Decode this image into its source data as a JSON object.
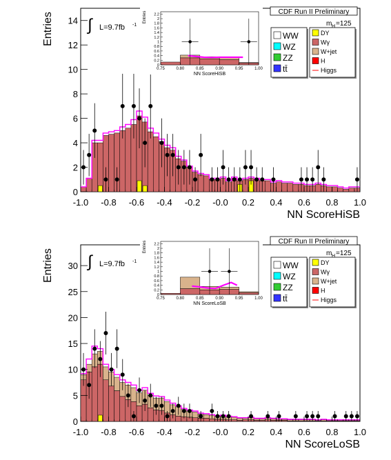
{
  "colors": {
    "WW": "#ffffff",
    "WZ": "#00ffff",
    "ZZ": "#33cc33",
    "ttbar": "#3333ff",
    "DY": "#ffff00",
    "Wgamma": "#cc6666",
    "Wjet": "#d9b38c",
    "H": "#ff0000",
    "Higgs": "#ff00ff",
    "data": "#000000"
  },
  "chart_data": [
    {
      "type": "bar",
      "stacked_histogram_with_data_points": true,
      "header": "CDF Run II Preliminary",
      "lumi_label": "L=9.7fb",
      "lumi_sup": "-1",
      "mass_label": "m",
      "mass_sub": "H",
      "mass_value": "=125",
      "xlabel": "NN ScoreHiSB",
      "ylabel": "Entries",
      "xlim": [
        -1.0,
        1.0
      ],
      "ylim": [
        0,
        15
      ],
      "xticks": [
        "-1.0",
        "-0.8",
        "-0.6",
        "-0.4",
        "-0.2",
        "-0.0",
        "0.2",
        "0.4",
        "0.6",
        "0.8",
        "1.0"
      ],
      "yticks": [
        "0",
        "2",
        "4",
        "6",
        "8",
        "10",
        "12",
        "14"
      ],
      "legend": {
        "left": [
          "WW",
          "WZ",
          "ZZ",
          "tt̄"
        ],
        "right": [
          "DY",
          "Wγ",
          "W+jet",
          "H",
          "Higgs"
        ]
      },
      "bin_width": 0.04,
      "x": [
        -0.98,
        -0.94,
        -0.9,
        -0.86,
        -0.82,
        -0.78,
        -0.74,
        -0.7,
        -0.66,
        -0.62,
        -0.58,
        -0.54,
        -0.5,
        -0.46,
        -0.42,
        -0.38,
        -0.34,
        -0.3,
        -0.26,
        -0.22,
        -0.18,
        -0.14,
        -0.1,
        -0.06,
        -0.02,
        0.02,
        0.06,
        0.1,
        0.14,
        0.18,
        0.22,
        0.26,
        0.3,
        0.34,
        0.38,
        0.42,
        0.46,
        0.5,
        0.54,
        0.58,
        0.62,
        0.66,
        0.7,
        0.74,
        0.78,
        0.82,
        0.86,
        0.9,
        0.94,
        0.98
      ],
      "stack_top": [
        0.4,
        1.1,
        4.0,
        4.0,
        4.6,
        4.7,
        4.8,
        5.0,
        5.2,
        5.5,
        6.2,
        5.7,
        4.9,
        4.5,
        4.1,
        3.6,
        3.4,
        2.7,
        2.5,
        2.0,
        1.6,
        1.4,
        1.3,
        1.0,
        1.0,
        1.1,
        0.8,
        1.1,
        0.9,
        1.0,
        1.1,
        1.0,
        0.9,
        0.9,
        0.7,
        0.8,
        0.7,
        0.7,
        0.6,
        0.6,
        0.5,
        0.5,
        0.6,
        0.5,
        0.4,
        0.4,
        0.3,
        0.2,
        0.3,
        0.3
      ],
      "dy": [
        0,
        0,
        0,
        0.5,
        0,
        0,
        0,
        0,
        0,
        0,
        0.9,
        0.5,
        0,
        0,
        0,
        0,
        0,
        0,
        0,
        0,
        0,
        0,
        0,
        0,
        0,
        0,
        0,
        0,
        0.6,
        0,
        0.9,
        0,
        0,
        0,
        0,
        0,
        0,
        0,
        0,
        0,
        0,
        0,
        0,
        0,
        0,
        0,
        0,
        0,
        0,
        0
      ],
      "higgs_top": [
        0.4,
        1.1,
        4.2,
        4.2,
        4.8,
        4.9,
        5.0,
        5.3,
        5.5,
        5.9,
        6.6,
        6.1,
        5.2,
        4.8,
        4.3,
        3.8,
        3.6,
        2.9,
        2.6,
        2.1,
        1.7,
        1.5,
        1.4,
        1.1,
        1.1,
        1.2,
        0.9,
        1.2,
        1.0,
        1.1,
        1.2,
        1.1,
        1.0,
        1.0,
        0.8,
        0.9,
        0.8,
        0.8,
        0.7,
        0.7,
        0.6,
        0.6,
        0.7,
        0.6,
        0.5,
        0.5,
        0.4,
        0.3,
        0.4,
        0.4
      ],
      "data_points": {
        "x": [
          -0.98,
          -0.94,
          -0.9,
          -0.82,
          -0.74,
          -0.7,
          -0.62,
          -0.58,
          -0.54,
          -0.5,
          -0.42,
          -0.38,
          -0.34,
          -0.3,
          -0.26,
          -0.22,
          -0.18,
          -0.14,
          -0.06,
          -0.02,
          0.02,
          0.06,
          0.1,
          0.14,
          0.18,
          0.22,
          0.26,
          0.3,
          0.38,
          0.58,
          0.62,
          0.66,
          0.7,
          0.74,
          0.98
        ],
        "y": [
          2,
          3,
          5,
          1,
          1,
          7,
          7,
          6,
          4,
          7,
          4,
          3,
          3,
          2,
          2,
          2,
          1,
          3,
          1,
          1,
          2,
          1,
          1,
          1,
          2,
          2,
          1,
          1,
          1,
          1,
          1,
          1,
          2,
          1,
          1
        ]
      },
      "inset": {
        "xlabel": "NN ScoreHiSB",
        "ylabel": "Entries",
        "xlim": [
          0.75,
          1.0
        ],
        "ylim": [
          0,
          2.3
        ],
        "xticks": [
          "0.75",
          "0.80",
          "0.85",
          "0.90",
          "0.95",
          "1.00"
        ],
        "yticks": [
          "0",
          "0.2",
          "0.4",
          "0.6",
          "0.8",
          "1",
          "1.2",
          "1.4",
          "1.6",
          "1.8",
          "2",
          "2.2"
        ],
        "bin_edges": [
          0.75,
          0.8,
          0.85,
          0.9,
          0.95,
          1.0
        ],
        "stack_top": [
          0.12,
          0.42,
          0.35,
          0.33,
          0.1
        ],
        "wgamma_top": [
          0.12,
          0.3,
          0.25,
          0.22,
          0.08
        ],
        "higgs_line": {
          "x": [
            0.82,
            0.84,
            0.86,
            0.88,
            0.9,
            0.92,
            0.94,
            0.96
          ],
          "y": [
            0.4,
            0.36,
            0.33,
            0.32,
            0.33,
            0.33,
            0.33,
            0.33
          ]
        },
        "data_points": {
          "x": [
            0.825,
            0.975
          ],
          "y": [
            1,
            1
          ]
        }
      }
    },
    {
      "type": "bar",
      "stacked_histogram_with_data_points": true,
      "header": "CDF Run II Preliminary",
      "lumi_label": "L=9.7fb",
      "lumi_sup": "-1",
      "mass_label": "m",
      "mass_sub": "H",
      "mass_value": "=125",
      "xlabel": "NN ScoreLoSB",
      "ylabel": "Entries",
      "xlim": [
        -1.0,
        1.0
      ],
      "ylim": [
        0,
        34
      ],
      "xticks": [
        "-1.0",
        "-0.8",
        "-0.6",
        "-0.4",
        "-0.2",
        "-0.0",
        "0.2",
        "0.4",
        "0.6",
        "0.8",
        "1.0"
      ],
      "yticks": [
        "0",
        "5",
        "10",
        "15",
        "20",
        "25",
        "30"
      ],
      "legend": {
        "left": [
          "WW",
          "WZ",
          "ZZ",
          "tt̄"
        ],
        "right": [
          "DY",
          "Wγ",
          "W+jet",
          "H",
          "Higgs"
        ]
      },
      "bin_width": 0.04,
      "x": [
        -0.98,
        -0.94,
        -0.9,
        -0.86,
        -0.82,
        -0.78,
        -0.74,
        -0.7,
        -0.66,
        -0.62,
        -0.58,
        -0.54,
        -0.5,
        -0.46,
        -0.42,
        -0.38,
        -0.34,
        -0.3,
        -0.26,
        -0.22,
        -0.18,
        -0.14,
        -0.1,
        -0.06,
        -0.02,
        0.02,
        0.06,
        0.1,
        0.14,
        0.18,
        0.22,
        0.26,
        0.3,
        0.34,
        0.38,
        0.42,
        0.46,
        0.5,
        0.54,
        0.58,
        0.62,
        0.66,
        0.7,
        0.74,
        0.78,
        0.82,
        0.86,
        0.9,
        0.94,
        0.98
      ],
      "stack_top": [
        9.0,
        11.0,
        13.0,
        13.5,
        10.5,
        9.5,
        8.5,
        7.5,
        7.0,
        6.5,
        5.5,
        6.0,
        5.0,
        4.5,
        4.5,
        3.8,
        3.2,
        2.8,
        2.3,
        2.0,
        1.8,
        1.4,
        1.3,
        1.2,
        1.0,
        1.1,
        0.9,
        0.8,
        0.6,
        0.6,
        0.7,
        0.5,
        0.5,
        0.6,
        0.5,
        0.4,
        0.4,
        0.3,
        0.3,
        0.3,
        0.3,
        0.3,
        0.2,
        0.3,
        0.2,
        0.2,
        0.2,
        0.2,
        0.2,
        0.2
      ],
      "wgamma_top": [
        8.0,
        9.5,
        10.5,
        11.0,
        8.0,
        6.8,
        5.9,
        4.8,
        4.2,
        3.8,
        3.0,
        3.3,
        2.6,
        2.2,
        2.1,
        1.6,
        1.3,
        1.0,
        0.9,
        0.8,
        0.7,
        0.6,
        0.6,
        0.5,
        0.4,
        0.4,
        0.3,
        0.3,
        0.2,
        0.3,
        0.3,
        0.2,
        0.2,
        0.3,
        0.2,
        0.2,
        0.2,
        0.1,
        0.1,
        0.1,
        0.1,
        0.1,
        0.1,
        0.1,
        0.1,
        0.1,
        0.1,
        0.1,
        0.1,
        0.1
      ],
      "dy": [
        0,
        0,
        0,
        1.2,
        0,
        0,
        0,
        0,
        0,
        0,
        0,
        0,
        0,
        0,
        0,
        0,
        0,
        0,
        0,
        0,
        0,
        0,
        0,
        0,
        0,
        0,
        0,
        0,
        0,
        0,
        0,
        0,
        0,
        0,
        0,
        0,
        0,
        0,
        0,
        0,
        0,
        0,
        0,
        0,
        0,
        0,
        0,
        0,
        0,
        0
      ],
      "higgs_top": [
        9.2,
        12.0,
        14.5,
        14.0,
        11.0,
        10.0,
        9.0,
        8.0,
        7.5,
        7.0,
        6.0,
        6.5,
        5.4,
        4.9,
        4.8,
        4.1,
        3.5,
        3.0,
        2.5,
        2.2,
        2.0,
        1.6,
        1.5,
        1.3,
        1.1,
        1.2,
        1.0,
        0.9,
        0.7,
        0.7,
        0.8,
        0.6,
        0.6,
        0.7,
        0.6,
        0.5,
        0.5,
        0.4,
        0.4,
        0.4,
        0.4,
        0.4,
        0.3,
        0.4,
        0.3,
        0.3,
        0.3,
        0.3,
        0.3,
        0.3
      ],
      "data_points": {
        "x": [
          -0.98,
          -0.94,
          -0.9,
          -0.86,
          -0.82,
          -0.78,
          -0.74,
          -0.7,
          -0.66,
          -0.62,
          -0.58,
          -0.54,
          -0.5,
          -0.46,
          -0.42,
          -0.38,
          -0.34,
          -0.3,
          -0.26,
          -0.22,
          -0.14,
          -0.06,
          -0.02,
          0.02,
          0.06,
          0.22,
          0.34,
          0.42,
          0.54,
          0.62,
          0.66,
          0.7,
          0.82,
          0.9,
          0.94,
          0.98
        ],
        "y": [
          10,
          7,
          14,
          12,
          17,
          10,
          14,
          9,
          5,
          1,
          6,
          4,
          5,
          3,
          3,
          1,
          2,
          3,
          2,
          2,
          1,
          2,
          1,
          1,
          1,
          1,
          1,
          1,
          1,
          1,
          1,
          1,
          1,
          1,
          1,
          1
        ]
      },
      "inset": {
        "xlabel": "NN ScoreLoSB",
        "ylabel": "Entries",
        "xlim": [
          0.75,
          1.0
        ],
        "ylim": [
          0,
          2.3
        ],
        "xticks": [
          "0.75",
          "0.80",
          "0.85",
          "0.90",
          "0.95",
          "1.00"
        ],
        "yticks": [
          "0",
          "0.2",
          "0.4",
          "0.6",
          "0.8",
          "1",
          "1.2",
          "1.4",
          "1.6",
          "1.8",
          "2",
          "2.2"
        ],
        "bin_edges": [
          0.75,
          0.8,
          0.85,
          0.9,
          0.95,
          1.0
        ],
        "stack_top": [
          0.05,
          0.75,
          0.35,
          0.32,
          0.12
        ],
        "wgamma_top": [
          0.05,
          0.25,
          0.2,
          0.22,
          0.08
        ],
        "higgs_line": {
          "x": [
            0.83,
            0.85,
            0.87,
            0.89,
            0.91,
            0.93,
            0.945
          ],
          "y": [
            0.36,
            0.33,
            0.28,
            0.26,
            0.4,
            0.52,
            0.4
          ]
        },
        "data_points": {
          "x": [
            0.875,
            0.925
          ],
          "y": [
            1,
            1
          ]
        }
      }
    }
  ]
}
